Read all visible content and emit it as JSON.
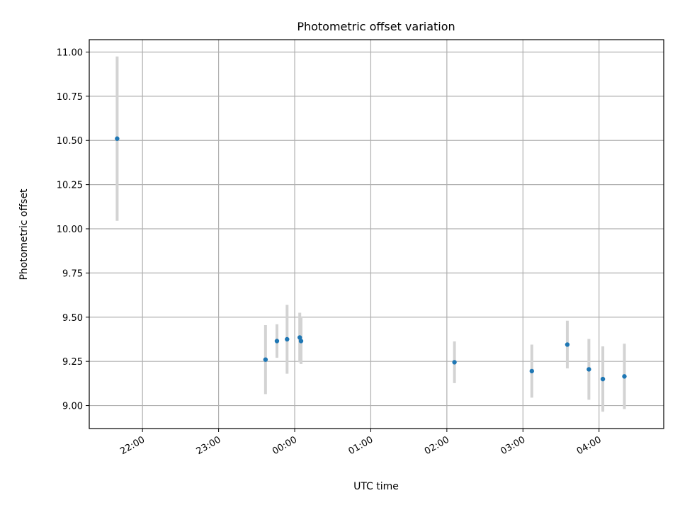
{
  "chart_data": {
    "type": "scatter",
    "title": "Photometric offset variation",
    "xlabel": "UTC time",
    "ylabel": "Photometric offset",
    "grid": true,
    "xlim_hours": [
      21.3,
      28.85
    ],
    "ylim": [
      8.87,
      11.07
    ],
    "x_ticks": [
      {
        "hour": 22,
        "label": "22:00"
      },
      {
        "hour": 23,
        "label": "23:00"
      },
      {
        "hour": 24,
        "label": "00:00"
      },
      {
        "hour": 25,
        "label": "01:00"
      },
      {
        "hour": 26,
        "label": "02:00"
      },
      {
        "hour": 27,
        "label": "03:00"
      },
      {
        "hour": 28,
        "label": "04:00"
      }
    ],
    "y_ticks": [
      {
        "value": 9.0,
        "label": "9.00"
      },
      {
        "value": 9.25,
        "label": "9.25"
      },
      {
        "value": 9.5,
        "label": "9.50"
      },
      {
        "value": 9.75,
        "label": "9.75"
      },
      {
        "value": 10.0,
        "label": "10.00"
      },
      {
        "value": 10.25,
        "label": "10.25"
      },
      {
        "value": 10.5,
        "label": "10.50"
      },
      {
        "value": 10.75,
        "label": "10.75"
      },
      {
        "value": 11.0,
        "label": "11.00"
      }
    ],
    "point_color": "#1f77b4",
    "errorbar_color": "#d3d3d3",
    "points": [
      {
        "time": "21:40",
        "y": 10.51,
        "err": 0.465
      },
      {
        "time": "23:37",
        "y": 9.26,
        "err": 0.195
      },
      {
        "time": "23:46",
        "y": 9.365,
        "err": 0.095
      },
      {
        "time": "23:54",
        "y": 9.375,
        "err": 0.195
      },
      {
        "time": "00:04",
        "y": 9.385,
        "err": 0.14
      },
      {
        "time": "00:05",
        "y": 9.365,
        "err": 0.13
      },
      {
        "time": "02:06",
        "y": 9.245,
        "err": 0.118
      },
      {
        "time": "03:07",
        "y": 9.195,
        "err": 0.15
      },
      {
        "time": "03:35",
        "y": 9.345,
        "err": 0.135
      },
      {
        "time": "03:52",
        "y": 9.205,
        "err": 0.172
      },
      {
        "time": "04:03",
        "y": 9.15,
        "err": 0.185
      },
      {
        "time": "04:20",
        "y": 9.165,
        "err": 0.185
      }
    ]
  }
}
